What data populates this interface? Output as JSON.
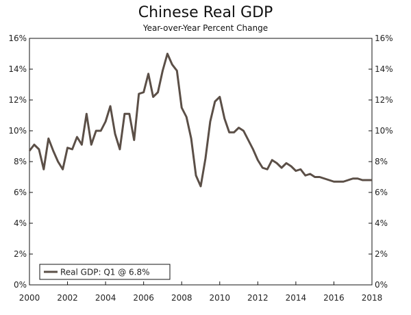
{
  "chart_data": {
    "type": "line",
    "title": "Chinese Real GDP",
    "subtitle": "Year-over-Year Percent Change",
    "xlabel": "",
    "ylabel": "",
    "xlim": [
      2000,
      2018
    ],
    "ylim": [
      0,
      16
    ],
    "x_ticks": [
      "2000",
      "2002",
      "2004",
      "2006",
      "2008",
      "2010",
      "2012",
      "2014",
      "2016",
      "2018"
    ],
    "y_ticks": [
      "0%",
      "2%",
      "4%",
      "6%",
      "8%",
      "10%",
      "12%",
      "14%",
      "16%"
    ],
    "grid": false,
    "legend_position": "bottom-left",
    "line_color": "#5b4f47",
    "series": [
      {
        "name": "Real GDP: Q1 @ 6.8%",
        "x": [
          2000.0,
          2000.25,
          2000.5,
          2000.75,
          2001.0,
          2001.25,
          2001.5,
          2001.75,
          2002.0,
          2002.25,
          2002.5,
          2002.75,
          2003.0,
          2003.25,
          2003.5,
          2003.75,
          2004.0,
          2004.25,
          2004.5,
          2004.75,
          2005.0,
          2005.25,
          2005.5,
          2005.75,
          2006.0,
          2006.25,
          2006.5,
          2006.75,
          2007.0,
          2007.25,
          2007.5,
          2007.75,
          2008.0,
          2008.25,
          2008.5,
          2008.75,
          2009.0,
          2009.25,
          2009.5,
          2009.75,
          2010.0,
          2010.25,
          2010.5,
          2010.75,
          2011.0,
          2011.25,
          2011.5,
          2011.75,
          2012.0,
          2012.25,
          2012.5,
          2012.75,
          2013.0,
          2013.25,
          2013.5,
          2013.75,
          2014.0,
          2014.25,
          2014.5,
          2014.75,
          2015.0,
          2015.25,
          2015.5,
          2015.75,
          2016.0,
          2016.25,
          2016.5,
          2016.75,
          2017.0,
          2017.25,
          2017.5,
          2017.75,
          2018.0
        ],
        "values": [
          8.7,
          9.1,
          8.8,
          7.5,
          9.5,
          8.7,
          8.0,
          7.5,
          8.9,
          8.8,
          9.6,
          9.1,
          11.1,
          9.1,
          10.0,
          10.0,
          10.6,
          11.6,
          9.8,
          8.8,
          11.1,
          11.1,
          9.4,
          12.4,
          12.5,
          13.7,
          12.2,
          12.5,
          13.9,
          15.0,
          14.3,
          13.9,
          11.5,
          10.9,
          9.5,
          7.1,
          6.4,
          8.2,
          10.6,
          11.9,
          12.2,
          10.8,
          9.9,
          9.9,
          10.2,
          10.0,
          9.4,
          8.8,
          8.1,
          7.6,
          7.5,
          8.1,
          7.9,
          7.6,
          7.9,
          7.7,
          7.4,
          7.5,
          7.1,
          7.2,
          7.0,
          7.0,
          6.9,
          6.8,
          6.7,
          6.7,
          6.7,
          6.8,
          6.9,
          6.9,
          6.8,
          6.8,
          6.8
        ]
      }
    ]
  }
}
